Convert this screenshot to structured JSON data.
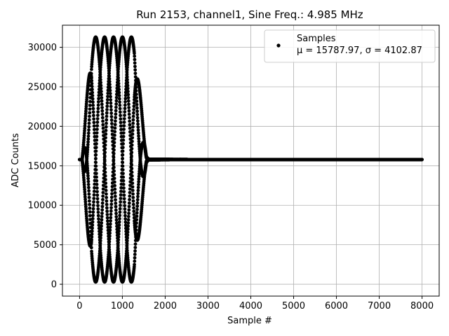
{
  "chart_data": {
    "type": "scatter",
    "title": "Run 2153, channel1, Sine Freq.: 4.985 MHz",
    "xlabel": "Sample #",
    "ylabel": "ADC Counts",
    "xlim": [
      -400,
      8400
    ],
    "ylim": [
      -1500,
      32800
    ],
    "xticks": [
      0,
      1000,
      2000,
      3000,
      4000,
      5000,
      6000,
      7000,
      8000
    ],
    "xtick_labels": [
      "0",
      "1000",
      "2000",
      "3000",
      "4000",
      "5000",
      "6000",
      "7000",
      "8000"
    ],
    "yticks": [
      0,
      5000,
      10000,
      15000,
      20000,
      25000,
      30000
    ],
    "ytick_labels": [
      "0",
      "5000",
      "10000",
      "15000",
      "20000",
      "25000",
      "30000"
    ],
    "grid": true,
    "legend_position": "top-right",
    "marker_color": "#000000",
    "series": [
      {
        "name": "Samples",
        "stats_label": "μ = 15787.97, σ = 4102.87",
        "count": 8000,
        "baseline": 15787.97,
        "sine_frequency_mhz": 4.985,
        "pulse_start_sample": 60,
        "pulse_end_sample": 1650,
        "amplitude_max": 15500
      }
    ]
  }
}
